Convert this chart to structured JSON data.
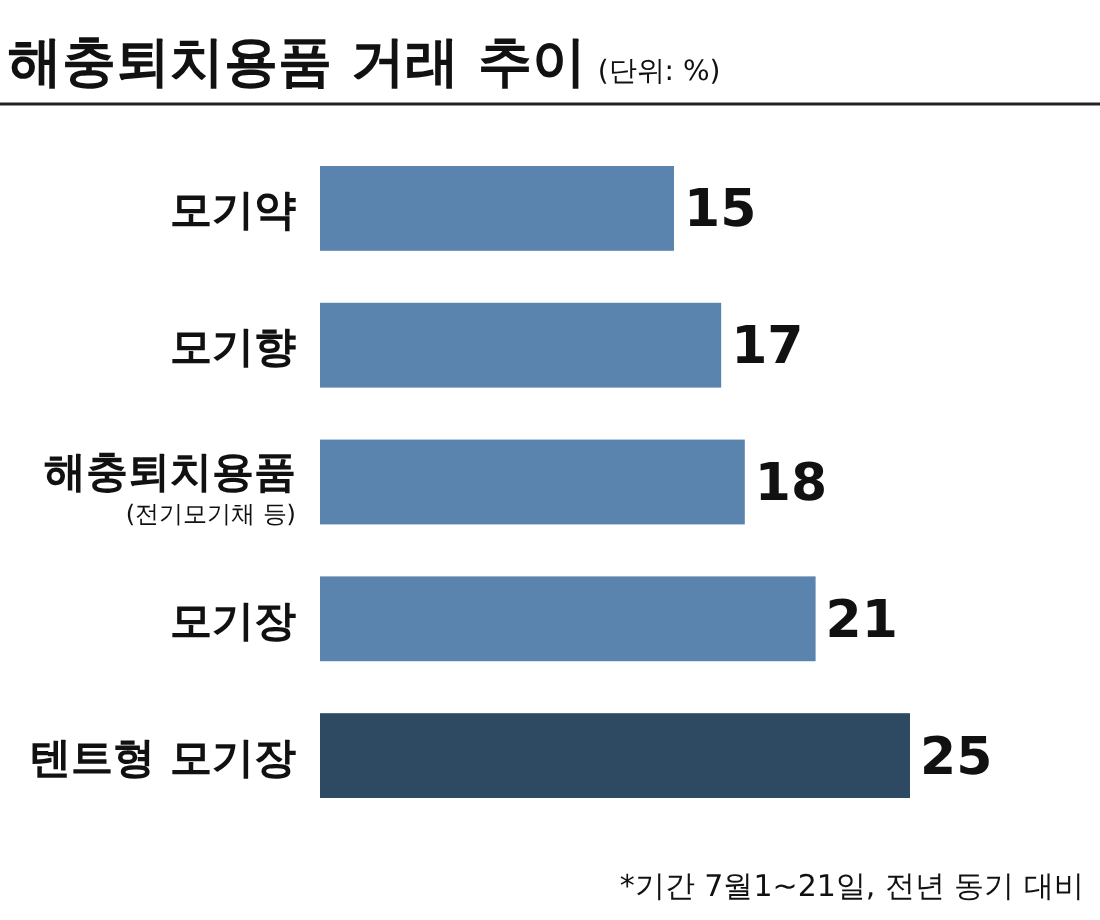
{
  "chart_data": {
    "type": "bar",
    "orientation": "horizontal",
    "title": "해충퇴치용품 거래 추이",
    "subtitle": "(단위: %)",
    "categories": [
      "모기약",
      "모기향",
      "해충퇴치용품\n(전기모기채 등)",
      "모기장",
      "텐트형 모기장"
    ],
    "values": [
      15,
      17,
      18,
      21,
      25
    ],
    "colors": [
      "#5a84ad",
      "#5a84ad",
      "#5a84ad",
      "#5a84ad",
      "#2e4a62"
    ],
    "data_labels": true,
    "annotations": [
      "*기간 7월1~21일, 전년 동기 대비"
    ]
  }
}
